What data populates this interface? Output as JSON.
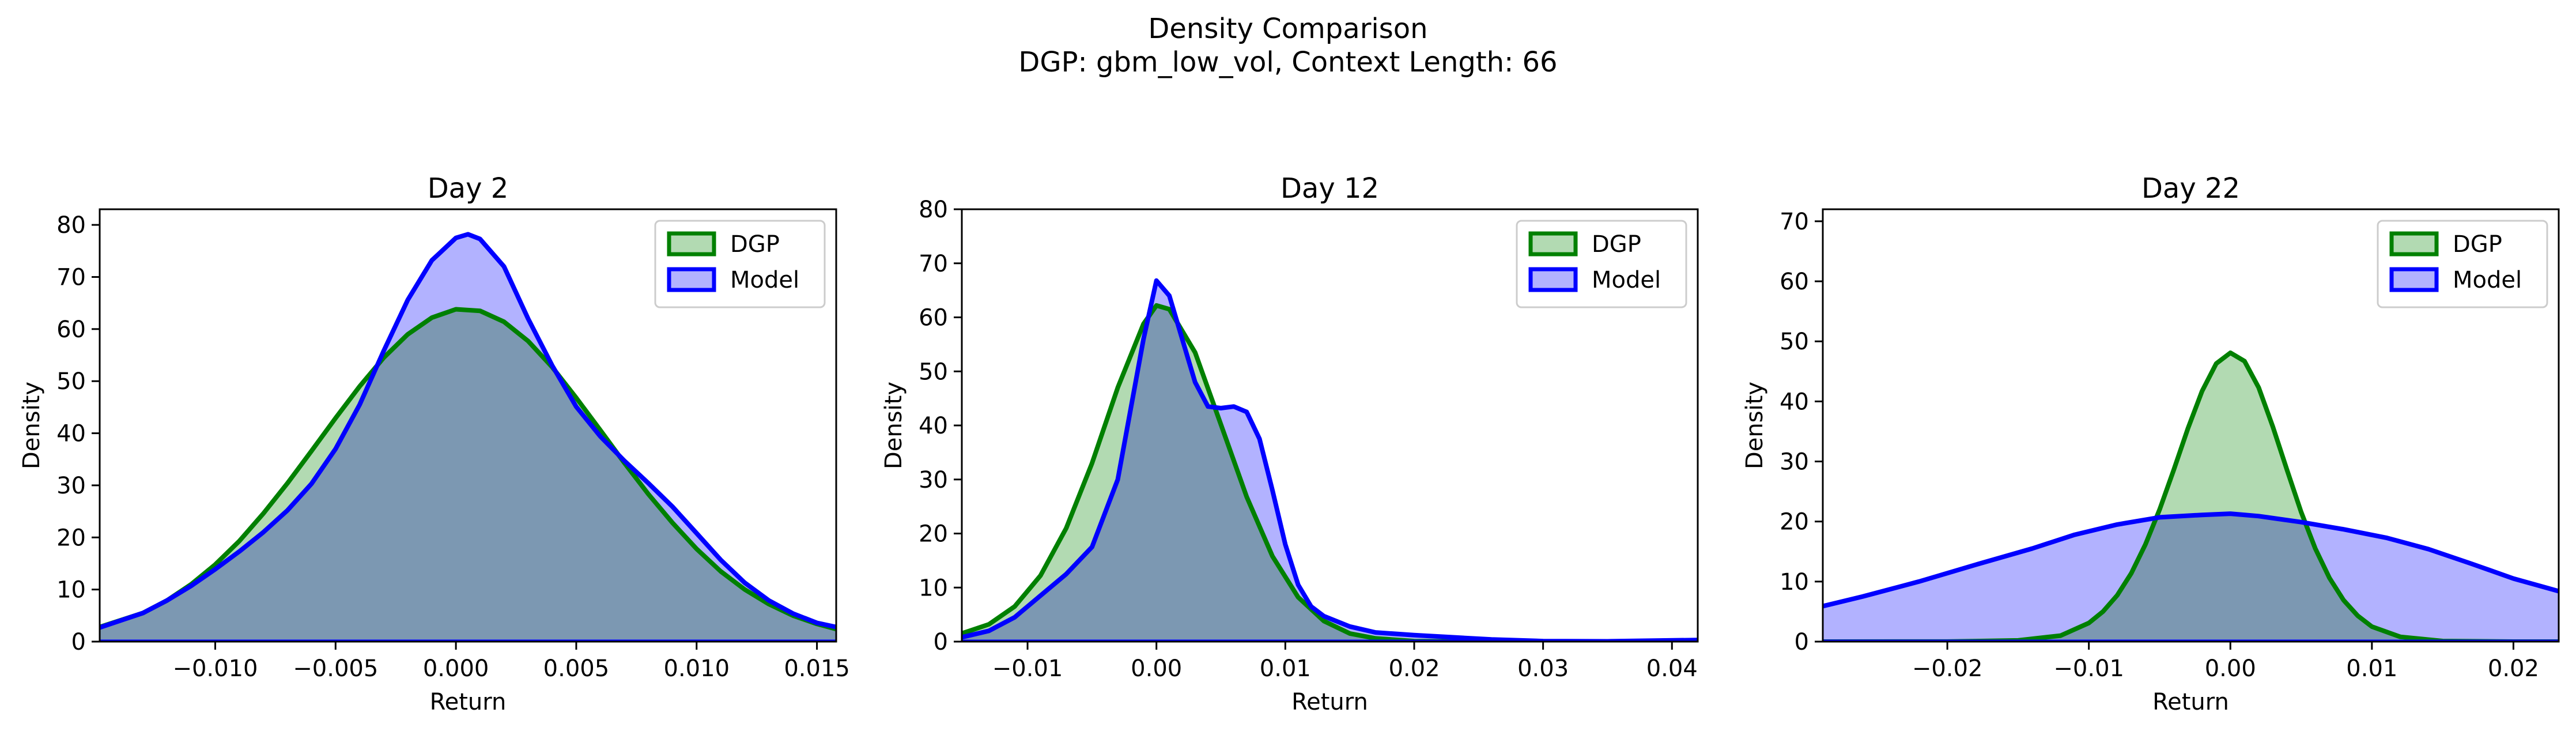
{
  "figure": {
    "title_line1": "Density Comparison",
    "title_line2": "DGP: gbm_low_vol, Context Length: 66"
  },
  "colors": {
    "dgp_line": "#008000",
    "dgp_fill": "#b2dab2",
    "model_line": "#0000ff",
    "model_fill": "#b2b2ff",
    "overlap_fill": "#7f99c8"
  },
  "chart_data": [
    {
      "type": "area",
      "title": "Day 2",
      "xlabel": "Return",
      "ylabel": "Density",
      "xlim": [
        -0.0148,
        0.0158
      ],
      "ylim": [
        0,
        83
      ],
      "xticks": [
        -0.01,
        -0.005,
        0.0,
        0.005,
        0.01,
        0.015
      ],
      "xtick_labels": [
        "−0.010",
        "−0.005",
        "0.000",
        "0.005",
        "0.010",
        "0.015"
      ],
      "yticks": [
        0,
        10,
        20,
        30,
        40,
        50,
        60,
        70,
        80
      ],
      "grid": false,
      "legend": "top-right",
      "series": [
        {
          "name": "DGP",
          "x": [
            -0.0148,
            -0.013,
            -0.012,
            -0.011,
            -0.01,
            -0.009,
            -0.008,
            -0.007,
            -0.006,
            -0.005,
            -0.004,
            -0.003,
            -0.002,
            -0.001,
            0.0,
            0.001,
            0.002,
            0.003,
            0.004,
            0.005,
            0.006,
            0.007,
            0.008,
            0.009,
            0.01,
            0.011,
            0.012,
            0.013,
            0.014,
            0.015,
            0.0158
          ],
          "y": [
            2.8,
            5.5,
            7.9,
            11,
            14.8,
            19.3,
            24.6,
            30.4,
            36.6,
            42.9,
            49,
            54.5,
            59,
            62.2,
            63.8,
            63.5,
            61.4,
            57.7,
            52.7,
            46.8,
            40.6,
            34.3,
            28.3,
            22.8,
            17.8,
            13.5,
            10,
            7.2,
            5,
            3.4,
            2.4
          ]
        },
        {
          "name": "Model",
          "x": [
            -0.0148,
            -0.013,
            -0.012,
            -0.011,
            -0.01,
            -0.009,
            -0.008,
            -0.007,
            -0.006,
            -0.005,
            -0.004,
            -0.003,
            -0.002,
            -0.001,
            0.0,
            0.0005,
            0.001,
            0.002,
            0.003,
            0.004,
            0.005,
            0.006,
            0.007,
            0.008,
            0.009,
            0.01,
            0.011,
            0.012,
            0.013,
            0.014,
            0.015,
            0.0158
          ],
          "y": [
            2.7,
            5.5,
            7.9,
            10.7,
            13.9,
            17.3,
            21,
            25.2,
            30.3,
            37,
            45.5,
            55.8,
            65.6,
            73.2,
            77.5,
            78.2,
            77.3,
            72,
            62,
            53,
            45.1,
            39.4,
            34.7,
            30.4,
            25.9,
            20.8,
            15.7,
            11.3,
            7.9,
            5.4,
            3.6,
            2.8
          ]
        }
      ]
    },
    {
      "type": "area",
      "title": "Day 12",
      "xlabel": "Return",
      "ylabel": "Density",
      "xlim": [
        -0.0151,
        0.042
      ],
      "ylim": [
        0,
        80
      ],
      "xticks": [
        -0.01,
        0.0,
        0.01,
        0.02,
        0.03,
        0.04
      ],
      "xtick_labels": [
        "−0.01",
        "0.00",
        "0.01",
        "0.02",
        "0.03",
        "0.04"
      ],
      "yticks": [
        0,
        10,
        20,
        30,
        40,
        50,
        60,
        70,
        80
      ],
      "grid": false,
      "legend": "top-right",
      "series": [
        {
          "name": "DGP",
          "x": [
            -0.0151,
            -0.013,
            -0.011,
            -0.009,
            -0.007,
            -0.005,
            -0.003,
            -0.001,
            0.0,
            0.001,
            0.003,
            0.005,
            0.007,
            0.009,
            0.011,
            0.013,
            0.015,
            0.017,
            0.02,
            0.025,
            0.03,
            0.042
          ],
          "y": [
            1.5,
            3.2,
            6.5,
            12.2,
            21,
            33,
            47,
            58.8,
            62.2,
            61.5,
            53.5,
            40.2,
            26.8,
            15.8,
            8.2,
            3.8,
            1.5,
            0.6,
            0.1,
            0,
            0,
            0
          ]
        },
        {
          "name": "Model",
          "x": [
            -0.0151,
            -0.013,
            -0.011,
            -0.009,
            -0.007,
            -0.005,
            -0.003,
            -0.001,
            0.0,
            0.001,
            0.002,
            0.003,
            0.004,
            0.005,
            0.006,
            0.007,
            0.008,
            0.009,
            0.01,
            0.011,
            0.012,
            0.013,
            0.015,
            0.017,
            0.02,
            0.023,
            0.026,
            0.03,
            0.035,
            0.042
          ],
          "y": [
            0.8,
            2,
            4.5,
            8.5,
            12.5,
            17.5,
            30,
            56,
            66.8,
            64,
            56,
            48,
            43.5,
            43.2,
            43.5,
            42.5,
            37.5,
            28,
            18,
            10.5,
            6.5,
            4.7,
            2.8,
            1.7,
            1.2,
            0.8,
            0.4,
            0.1,
            0.05,
            0.3
          ]
        }
      ]
    },
    {
      "type": "area",
      "title": "Day 22",
      "xlabel": "Return",
      "ylabel": "Density",
      "xlim": [
        -0.0288,
        0.0232
      ],
      "ylim": [
        0,
        72
      ],
      "xticks": [
        -0.02,
        -0.01,
        0.0,
        0.01,
        0.02
      ],
      "xtick_labels": [
        "−0.02",
        "−0.01",
        "0.00",
        "0.01",
        "0.02"
      ],
      "yticks": [
        0,
        10,
        20,
        30,
        40,
        50,
        60,
        70
      ],
      "grid": false,
      "legend": "top-right",
      "series": [
        {
          "name": "DGP",
          "x": [
            -0.0288,
            -0.02,
            -0.015,
            -0.012,
            -0.01,
            -0.009,
            -0.008,
            -0.007,
            -0.006,
            -0.005,
            -0.004,
            -0.003,
            -0.002,
            -0.001,
            0.0,
            0.001,
            0.002,
            0.003,
            0.004,
            0.005,
            0.006,
            0.007,
            0.008,
            0.009,
            0.01,
            0.012,
            0.015,
            0.02,
            0.0232
          ],
          "y": [
            0,
            0.01,
            0.2,
            1,
            3.1,
            5,
            7.7,
            11.4,
            16.2,
            22,
            28.6,
            35.5,
            41.7,
            46.3,
            48.1,
            46.7,
            42.3,
            35.8,
            28.6,
            21.6,
            15.5,
            10.6,
            6.9,
            4.3,
            2.5,
            0.8,
            0.1,
            0,
            0
          ]
        },
        {
          "name": "Model",
          "x": [
            -0.0288,
            -0.026,
            -0.022,
            -0.018,
            -0.014,
            -0.011,
            -0.008,
            -0.005,
            -0.002,
            0.0,
            0.002,
            0.005,
            0.008,
            0.011,
            0.014,
            0.017,
            0.02,
            0.0232
          ],
          "y": [
            5.9,
            7.5,
            10,
            12.8,
            15.5,
            17.8,
            19.5,
            20.7,
            21.1,
            21.3,
            20.9,
            19.9,
            18.7,
            17.3,
            15.4,
            13,
            10.5,
            8.4
          ]
        }
      ]
    }
  ]
}
